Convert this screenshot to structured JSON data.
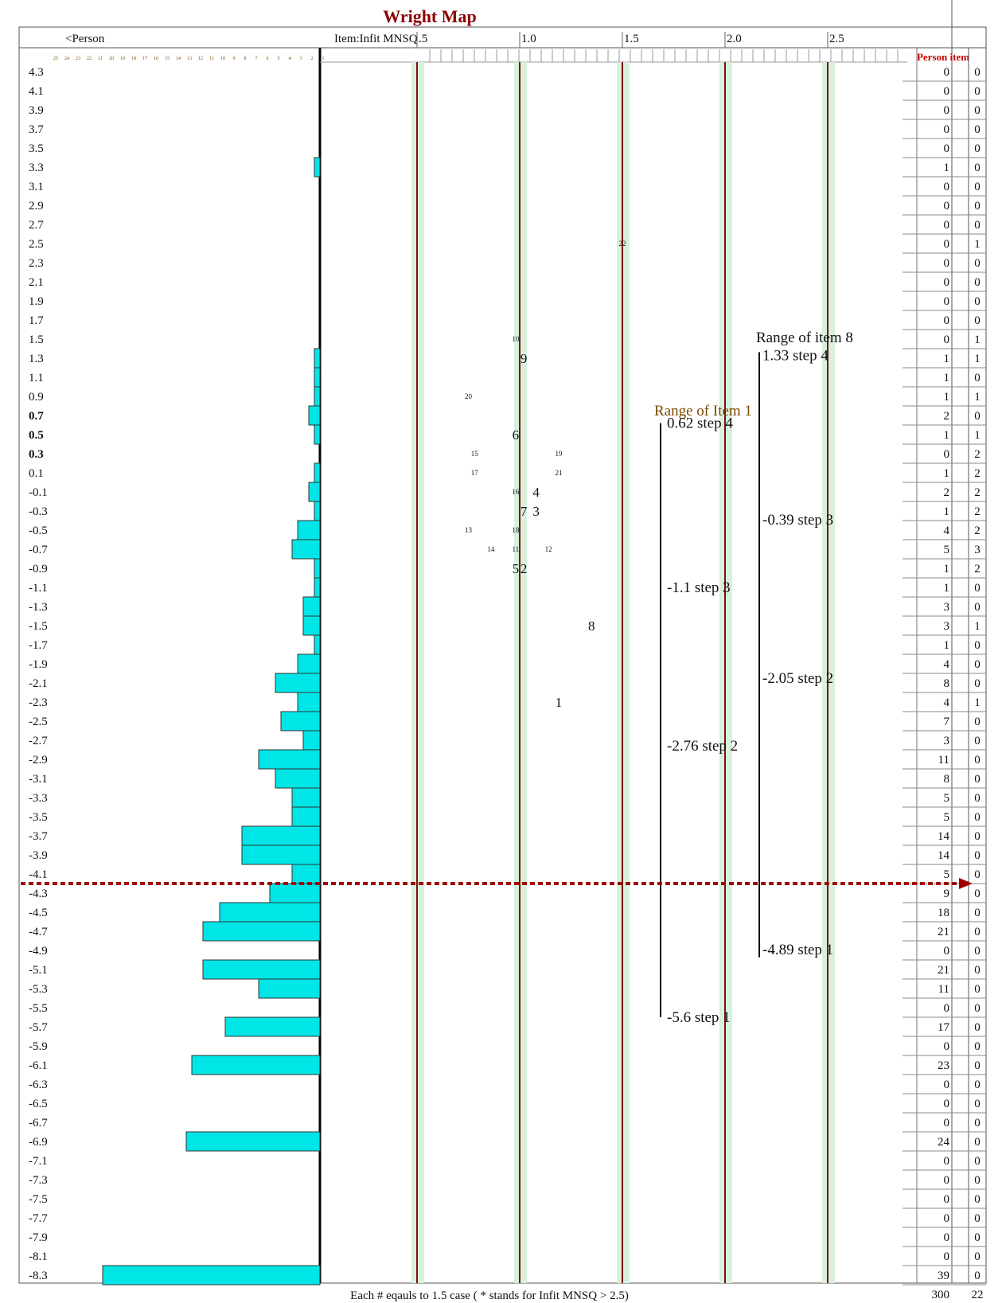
{
  "chart_data": {
    "type": "wright-map",
    "title": "Wright Map",
    "person_header": "<Person",
    "item_header": "Item:Infit MNSQ",
    "x_ticks": [
      ".5",
      "1.0",
      "1.5",
      "2.0",
      "2.5"
    ],
    "x_tick_values": [
      0.5,
      1.0,
      1.5,
      2.0,
      2.5
    ],
    "histogram_scale_labels": [
      "25",
      "24",
      "23",
      "22",
      "21",
      "20",
      "19",
      "18",
      "17",
      "16",
      "15",
      "14",
      "13",
      "12",
      "11",
      "10",
      "9",
      "8",
      "7",
      "6",
      "5",
      "4",
      "3",
      "2",
      "1"
    ],
    "table_header": "Person item",
    "rows": [
      {
        "measure": "4.3",
        "persons": 0,
        "items": 0
      },
      {
        "measure": "4.1",
        "persons": 0,
        "items": 0
      },
      {
        "measure": "3.9",
        "persons": 0,
        "items": 0
      },
      {
        "measure": "3.7",
        "persons": 0,
        "items": 0
      },
      {
        "measure": "3.5",
        "persons": 0,
        "items": 0
      },
      {
        "measure": "3.3",
        "persons": 1,
        "items": 0
      },
      {
        "measure": "3.1",
        "persons": 0,
        "items": 0
      },
      {
        "measure": "2.9",
        "persons": 0,
        "items": 0
      },
      {
        "measure": "2.7",
        "persons": 0,
        "items": 0
      },
      {
        "measure": "2.5",
        "persons": 0,
        "items": 1
      },
      {
        "measure": "2.3",
        "persons": 0,
        "items": 0
      },
      {
        "measure": "2.1",
        "persons": 0,
        "items": 0
      },
      {
        "measure": "1.9",
        "persons": 0,
        "items": 0
      },
      {
        "measure": "1.7",
        "persons": 0,
        "items": 0
      },
      {
        "measure": "1.5",
        "persons": 0,
        "items": 1
      },
      {
        "measure": "1.3",
        "persons": 1,
        "items": 1
      },
      {
        "measure": "1.1",
        "persons": 1,
        "items": 0
      },
      {
        "measure": "0.9",
        "persons": 1,
        "items": 1
      },
      {
        "measure": "0.7",
        "persons": 2,
        "items": 0,
        "bold": true
      },
      {
        "measure": "0.5",
        "persons": 1,
        "items": 1,
        "bold": true
      },
      {
        "measure": "0.3",
        "persons": 0,
        "items": 2,
        "bold": true
      },
      {
        "measure": "0.1",
        "persons": 1,
        "items": 2
      },
      {
        "measure": "-0.1",
        "persons": 2,
        "items": 2
      },
      {
        "measure": "-0.3",
        "persons": 1,
        "items": 2
      },
      {
        "measure": "-0.5",
        "persons": 4,
        "items": 2
      },
      {
        "measure": "-0.7",
        "persons": 5,
        "items": 3
      },
      {
        "measure": "-0.9",
        "persons": 1,
        "items": 2
      },
      {
        "measure": "-1.1",
        "persons": 1,
        "items": 0
      },
      {
        "measure": "-1.3",
        "persons": 3,
        "items": 0
      },
      {
        "measure": "-1.5",
        "persons": 3,
        "items": 1
      },
      {
        "measure": "-1.7",
        "persons": 1,
        "items": 0
      },
      {
        "measure": "-1.9",
        "persons": 4,
        "items": 0
      },
      {
        "measure": "-2.1",
        "persons": 8,
        "items": 0
      },
      {
        "measure": "-2.3",
        "persons": 4,
        "items": 1
      },
      {
        "measure": "-2.5",
        "persons": 7,
        "items": 0
      },
      {
        "measure": "-2.7",
        "persons": 3,
        "items": 0
      },
      {
        "measure": "-2.9",
        "persons": 11,
        "items": 0
      },
      {
        "measure": "-3.1",
        "persons": 8,
        "items": 0
      },
      {
        "measure": "-3.3",
        "persons": 5,
        "items": 0
      },
      {
        "measure": "-3.5",
        "persons": 5,
        "items": 0
      },
      {
        "measure": "-3.7",
        "persons": 14,
        "items": 0
      },
      {
        "measure": "-3.9",
        "persons": 14,
        "items": 0
      },
      {
        "measure": "-4.1",
        "persons": 5,
        "items": 0
      },
      {
        "measure": "-4.3",
        "persons": 9,
        "items": 0
      },
      {
        "measure": "-4.5",
        "persons": 18,
        "items": 0
      },
      {
        "measure": "-4.7",
        "persons": 21,
        "items": 0
      },
      {
        "measure": "-4.9",
        "persons": 0,
        "items": 0
      },
      {
        "measure": "-5.1",
        "persons": 21,
        "items": 0
      },
      {
        "measure": "-5.3",
        "persons": 11,
        "items": 0
      },
      {
        "measure": "-5.5",
        "persons": 0,
        "items": 0
      },
      {
        "measure": "-5.7",
        "persons": 17,
        "items": 0
      },
      {
        "measure": "-5.9",
        "persons": 0,
        "items": 0
      },
      {
        "measure": "-6.1",
        "persons": 23,
        "items": 0
      },
      {
        "measure": "-6.3",
        "persons": 0,
        "items": 0
      },
      {
        "measure": "-6.5",
        "persons": 0,
        "items": 0
      },
      {
        "measure": "-6.7",
        "persons": 0,
        "items": 0
      },
      {
        "measure": "-6.9",
        "persons": 24,
        "items": 0
      },
      {
        "measure": "-7.1",
        "persons": 0,
        "items": 0
      },
      {
        "measure": "-7.3",
        "persons": 0,
        "items": 0
      },
      {
        "measure": "-7.5",
        "persons": 0,
        "items": 0
      },
      {
        "measure": "-7.7",
        "persons": 0,
        "items": 0
      },
      {
        "measure": "-7.9",
        "persons": 0,
        "items": 0
      },
      {
        "measure": "-8.1",
        "persons": 0,
        "items": 0
      },
      {
        "measure": "-8.3",
        "persons": 39,
        "items": 0
      }
    ],
    "totals": {
      "persons": "300",
      "items": "22"
    },
    "items": [
      {
        "label": "22",
        "infit": 1.5,
        "measure": 2.5,
        "size": "small"
      },
      {
        "label": "10",
        "infit": 0.98,
        "measure": 1.5,
        "size": "small"
      },
      {
        "label": "9",
        "infit": 1.02,
        "measure": 1.3,
        "size": "large"
      },
      {
        "label": "20",
        "infit": 0.75,
        "measure": 0.9,
        "size": "small"
      },
      {
        "label": "6",
        "infit": 0.98,
        "measure": 0.5,
        "size": "large"
      },
      {
        "label": "15",
        "infit": 0.78,
        "measure": 0.3,
        "size": "small"
      },
      {
        "label": "19",
        "infit": 1.19,
        "measure": 0.3,
        "size": "small"
      },
      {
        "label": "17",
        "infit": 0.78,
        "measure": 0.1,
        "size": "small"
      },
      {
        "label": "21",
        "infit": 1.19,
        "measure": 0.1,
        "size": "small"
      },
      {
        "label": "16",
        "infit": 0.98,
        "measure": -0.1,
        "size": "small"
      },
      {
        "label": "4",
        "infit": 1.08,
        "measure": -0.1,
        "size": "large"
      },
      {
        "label": "7",
        "infit": 1.02,
        "measure": -0.3,
        "size": "large"
      },
      {
        "label": "3",
        "infit": 1.08,
        "measure": -0.3,
        "size": "large"
      },
      {
        "label": "13",
        "infit": 0.75,
        "measure": -0.5,
        "size": "small"
      },
      {
        "label": "18",
        "infit": 0.98,
        "measure": -0.5,
        "size": "small"
      },
      {
        "label": "14",
        "infit": 0.86,
        "measure": -0.7,
        "size": "small"
      },
      {
        "label": "11",
        "infit": 0.98,
        "measure": -0.7,
        "size": "small"
      },
      {
        "label": "12",
        "infit": 1.14,
        "measure": -0.7,
        "size": "small"
      },
      {
        "label": "5",
        "infit": 0.98,
        "measure": -0.9,
        "size": "large"
      },
      {
        "label": "2",
        "infit": 1.02,
        "measure": -0.9,
        "size": "large"
      },
      {
        "label": "8",
        "infit": 1.35,
        "measure": -1.5,
        "size": "large"
      },
      {
        "label": "1",
        "infit": 1.19,
        "measure": -2.3,
        "size": "large"
      }
    ],
    "annotations": {
      "item1": {
        "title": "Range of Item 1",
        "steps": [
          {
            "text": "0.62 step 4",
            "measure": 0.62
          },
          {
            "text": "-1.1 step 3",
            "measure": -1.1
          },
          {
            "text": "-2.76 step 2",
            "measure": -2.76
          },
          {
            "text": "-5.6 step 1",
            "measure": -5.6
          }
        ]
      },
      "item8": {
        "title": "Range of item 8",
        "steps": [
          {
            "text": "1.33 step 4",
            "measure": 1.33
          },
          {
            "text": "-0.39 step 3",
            "measure": -0.39
          },
          {
            "text": "-2.05 step 2",
            "measure": -2.05
          },
          {
            "text": "-4.89 step 1",
            "measure": -4.89
          }
        ]
      }
    },
    "cutoff_measure": -4.2,
    "footer": "Each # eqauls to 1.5 case ( * stands for Infit MNSQ > 2.5)",
    "colors": {
      "bar": "#00e5e5",
      "title": "#8b0000",
      "ref_line": "#7a1010",
      "ref_band": "#d8f0dc",
      "cutoff": "#a00000",
      "table_header": "#cc0000"
    }
  }
}
